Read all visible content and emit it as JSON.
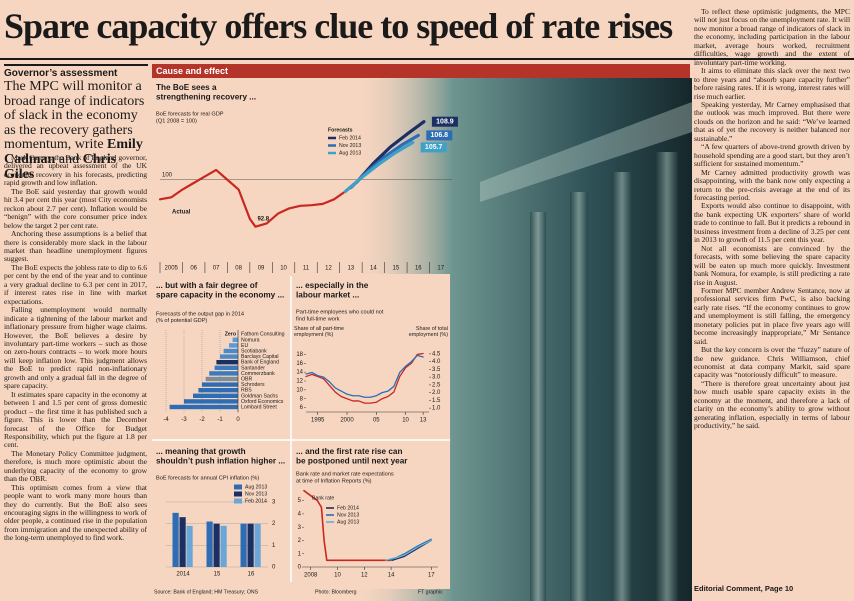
{
  "headline": "Spare capacity offers clue to speed of rate rises",
  "sidebar": {
    "label": "Governor’s assessment",
    "standfirst": [
      "The MPC will monitor a broad range of indicators of slack in the economy as the recovery gathers momentum, write",
      "Emily Cadman",
      "and",
      "Chris Giles"
    ]
  },
  "article": {
    "left": [
      "Mark Carney, the Bank of England governor, delivered an upbeat assessment of the UK economic recovery in his forecasts, predicting rapid growth and low inflation.",
      "The BoE said yesterday that growth would hit 3.4 per cent this year (most City economists reckon about 2.7 per cent). Inflation would be “benign” with the core consumer price index below the target 2 per cent rate.",
      "Anchoring these assumptions is a belief that there is considerably more slack in the labour market than headline unemployment figures suggest.",
      "The BoE expects the jobless rate to dip to 6.6 per cent by the end of the year and to continue a very gradual decline to 6.3 per cent in 2017, if interest rates rise in line with market expectations.",
      "Falling unemployment would normally indicate a tightening of the labour market and inflationary pressure from higher wage claims. However, the BoE believes a desire by involuntary part-time workers – such as those on zero-hours contracts – to work more hours will keep inflation low. This judgment allows the BoE to predict rapid non-inflationary growth and only a gradual fall in the degree of spare capacity.",
      "It estimates spare capacity in the economy at between 1 and 1.5 per cent of gross domestic product – the first time it has published such a figure. This is lower than the December forecast of the Office for Budget Responsibility, which put the figure at 1.8 per cent.",
      "The Monetary Policy Committee judgment, therefore, is much more optimistic about the underlying capacity of the economy to grow than the OBR.",
      "This optimism comes from a view that people want to work many more hours than they do currently. But the BoE also sees encouraging signs in the willingness to work of older people, a continued rise in the population from immigration and the unexpected ability of the long-term unemployed to find work."
    ],
    "right": [
      "To reflect these optimistic judgments, the MPC will not just focus on the unemployment rate. It will now monitor a broad range of indicators of slack in the economy, including participation in the labour market, average hours worked, recruitment difficulties, wage growth and the extent of involuntary part-time working.",
      "It aims to eliminate this slack over the next two to three years and “absorb spare capacity further” before raising rates. If it is wrong, interest rates will rise much earlier.",
      "Speaking yesterday, Mr Carney emphasised that the outlook was much improved. But there were clouds on the horizon and he said: “We’ve learned that as of yet the recovery is neither balanced nor sustainable.”",
      "“A few quarters of above-trend growth driven by household spending are a good start, but they aren’t sufficient for sustained momentum.”",
      "Mr Carney admitted productivity growth was disappointing, with the bank now only expecting a return to the pre-crisis average at the end of its forecasting period.",
      "Exports would also continue to disappoint, with the bank expecting UK exporters’ share of world trade to continue to fall. But it predicts a rebound in business investment from a decline of 3.25 per cent in 2013 to growth of 11.5 per cent this year.",
      "Not all economists are convinced by the forecasts, with some believing the spare capacity will be eaten up much more quickly. Investment bank Nomura, for example, is still predicting a rate rise in August.",
      "Former MPC member Andrew Sentance, now at professional services firm PwC, is also backing early rate rises. “If the economy continues to grow and unemployment is still falling, the emergency monetary policies put in place five years ago will become increasingly inappropriate,” Mr Sentance said.",
      "But the key concern is over the “fuzzy” nature of the new guidance. Chris Williamson, chief economist at data company Markit, said spare capacity was “notoriously difficult” to measure.",
      "“There is therefore great uncertainty about just how much usable spare capacity exists in the economy at the moment, and therefore a lack of clarity on the economy’s ability to grow without generating inflation, especially in terms of labour productivity,” he said."
    ],
    "footer": "Editorial Comment, Page 10"
  },
  "graphic": {
    "title": "Cause and effect",
    "source": "Source: Bank of England; HM Treasury; ONS",
    "photo": "Photo: Bloomberg",
    "credit": "FT graphic"
  },
  "chart_data": [
    {
      "type": "line",
      "title": [
        "The BoE sees a",
        "strengthening recovery ..."
      ],
      "subtitle": [
        "BoE forecasts for real GDP",
        "(Q1 2008 = 100)"
      ],
      "xlim": [
        2005,
        2018
      ],
      "xticks": [
        2005,
        {
          "value": 2006,
          "label": "06"
        },
        {
          "value": 2007,
          "label": "07"
        },
        {
          "value": 2008,
          "label": "08"
        },
        {
          "value": 2009,
          "label": "09"
        },
        {
          "value": 2010,
          "label": "10"
        },
        {
          "value": 2011,
          "label": "11"
        },
        {
          "value": 2012,
          "label": "12"
        },
        {
          "value": 2013,
          "label": "13"
        },
        {
          "value": 2014,
          "label": "14"
        },
        {
          "value": 2015,
          "label": "15"
        },
        {
          "value": 2016,
          "label": "16"
        },
        {
          "value": 2017,
          "label": "17"
        }
      ],
      "ylim": [
        88,
        111
      ],
      "yticks": [
        100
      ],
      "grid": true,
      "legend_title": "Forecasts",
      "series": [
        {
          "name": "Actual",
          "color": "#c8281e",
          "x": [
            2005,
            2005.5,
            2006,
            2006.5,
            2007,
            2007.5,
            2008,
            2008.5,
            2009,
            2009.25,
            2009.75,
            2010.25,
            2010.75,
            2011.25,
            2011.75,
            2012.25,
            2012.75,
            2013.25,
            2013.75
          ],
          "values": [
            97,
            97.3,
            98.5,
            99.5,
            100.5,
            101.5,
            100,
            98.5,
            94,
            92.8,
            93.3,
            94.8,
            95.6,
            96,
            96.1,
            96.3,
            97,
            98.2,
            99.6
          ]
        },
        {
          "name": "Feb 2014",
          "color": "#1c2f63",
          "x": [
            2013.75,
            2014.5,
            2015.25,
            2016,
            2016.75
          ],
          "values": [
            99.6,
            102.5,
            105,
            107,
            108.9
          ]
        },
        {
          "name": "Nov 2013",
          "color": "#2e6db4",
          "x": [
            2013.5,
            2014.25,
            2015,
            2015.75,
            2016.5
          ],
          "values": [
            98.8,
            101.3,
            103.5,
            105.3,
            106.8
          ]
        },
        {
          "name": "Aug 2013",
          "color": "#3fa0c8",
          "x": [
            2013.25,
            2014,
            2014.75,
            2015.5,
            2016.25
          ],
          "values": [
            98.2,
            100.4,
            102.4,
            104.2,
            105.7
          ]
        }
      ]
    },
    {
      "type": "hbar",
      "title": [
        "... but with a fair degree of",
        "spare capacity in the economy ..."
      ],
      "subtitle": [
        "Forecasts of the output gap in 2014",
        "(% of potential GDP)"
      ],
      "categories": [
        "Fathom Consulting",
        "Nomura",
        "EU",
        "Scotiabank",
        "Barclays Capital",
        "Bank of England",
        "Santander",
        "Commerzbank",
        "OBR",
        "Schroders",
        "RBS",
        "Goldman Sachs",
        "Oxford Economics",
        "Lombard Street"
      ],
      "values": [
        0,
        -0.3,
        -0.5,
        -0.8,
        -1.0,
        -1.2,
        -1.3,
        -1.6,
        -1.8,
        -2.0,
        -2.2,
        -2.5,
        -3.0,
        -3.8
      ],
      "value_labels": [
        "Zero",
        null,
        null,
        null,
        null,
        null,
        null,
        null,
        null,
        null,
        null,
        null,
        null,
        null
      ],
      "colors": [
        "#5a9bd5",
        "#5a9bd5",
        "#5a9bd5",
        "#4a8bc8",
        "#4a8bc8",
        "#1c2f63",
        "#3a7bbd",
        "#3a7bbd",
        "#7f8c99",
        "#2e6db4",
        "#2e6db4",
        "#2e6db4",
        "#2e6db4",
        "#2e6db4"
      ],
      "xlim": [
        -4.5,
        0.5
      ],
      "xticks": [
        -4,
        -3,
        -2,
        -1,
        0
      ],
      "grid": true
    },
    {
      "type": "line",
      "title": [
        "... especially in the",
        "labour market ..."
      ],
      "subtitle": [
        "Part-time employees who could not",
        "find full-time work"
      ],
      "xlim": [
        1993,
        2014
      ],
      "xticks": [
        1995,
        2000,
        {
          "value": 2005,
          "label": "05"
        },
        {
          "value": 2010,
          "label": "10"
        },
        {
          "value": 2013,
          "label": "13"
        }
      ],
      "ylim": [
        5,
        19
      ],
      "yticks": [
        6,
        8,
        10,
        12,
        14,
        16,
        18
      ],
      "y2lim": [
        0.75,
        4.75
      ],
      "y2ticks": [
        {
          "value": 1,
          "label": "1.0"
        },
        1.5,
        {
          "value": 2,
          "label": "2.0"
        },
        2.5,
        {
          "value": 3,
          "label": "3.0"
        },
        3.5,
        {
          "value": 4,
          "label": "4.0"
        },
        4.5
      ],
      "grid": false,
      "series": [
        {
          "name": "Share of all part-time employment (%)",
          "color": "#c8281e",
          "x": [
            1993,
            1994,
            1995,
            1996,
            1997,
            1998,
            1999,
            2000,
            2001,
            2002,
            2003,
            2004,
            2005,
            2006,
            2007,
            2008,
            2009,
            2010,
            2011,
            2012,
            2013
          ],
          "values": [
            13,
            13.5,
            13,
            12.5,
            11,
            9.5,
            8.5,
            8,
            7.5,
            7.5,
            7,
            7,
            7.2,
            8,
            8.5,
            9.5,
            13,
            15,
            16,
            18,
            18.2
          ]
        },
        {
          "name": "Share of total employment (%)",
          "color": "#2e6db4",
          "axis": "y2",
          "x": [
            1993,
            1994,
            1995,
            1996,
            1997,
            1998,
            1999,
            2000,
            2001,
            2002,
            2003,
            2004,
            2005,
            2006,
            2007,
            2008,
            2009,
            2010,
            2011,
            2012,
            2013
          ],
          "values": [
            3.2,
            3.3,
            3.1,
            3.0,
            2.7,
            2.3,
            2.1,
            1.9,
            1.8,
            1.8,
            1.7,
            1.7,
            1.8,
            2.0,
            2.1,
            2.4,
            3.3,
            3.7,
            4.0,
            4.4,
            4.3
          ]
        }
      ]
    },
    {
      "type": "groupbar",
      "title": [
        "... meaning that growth",
        "shouldn’t push inflation higher ..."
      ],
      "subtitle": "BoE forecasts for annual CPI inflation (%)",
      "categories": [
        "2014",
        "15",
        "16"
      ],
      "ylim": [
        0,
        3
      ],
      "yticks": [
        0,
        1,
        2,
        3
      ],
      "grid": true,
      "series": [
        {
          "name": "Aug 2013",
          "color": "#2e6db4",
          "values": [
            2.5,
            2.1,
            2.0
          ]
        },
        {
          "name": "Nov 2013",
          "color": "#1c2f63",
          "values": [
            2.3,
            2.0,
            2.0
          ]
        },
        {
          "name": "Feb 2014",
          "color": "#6aa6d8",
          "values": [
            1.9,
            1.9,
            2.0
          ]
        }
      ]
    },
    {
      "type": "line",
      "title": [
        "... and the first rate rise can",
        "be postponed until next year"
      ],
      "subtitle": [
        "Bank rate and market rate expectations",
        "at time of Inflation Reports (%)"
      ],
      "xlim": [
        2007.5,
        2017.5
      ],
      "xticks": [
        2008,
        {
          "value": 2010,
          "label": "10"
        },
        {
          "value": 2012,
          "label": "12"
        },
        {
          "value": 2014,
          "label": "14"
        },
        {
          "value": 2017,
          "label": "17"
        }
      ],
      "ylim": [
        0,
        5.5
      ],
      "yticks": [
        0,
        1,
        2,
        3,
        4,
        5
      ],
      "grid": false,
      "series": [
        {
          "name": "Bank rate",
          "color": "#c8281e",
          "x": [
            2007.5,
            2008.5,
            2008.8,
            2009.0,
            2009.2,
            2014
          ],
          "values": [
            5.75,
            5,
            4.5,
            2,
            0.5,
            0.5
          ]
        },
        {
          "name": "Feb 2014",
          "color": "#1c2f63",
          "x": [
            2014.1,
            2015,
            2016,
            2017
          ],
          "values": [
            0.5,
            0.8,
            1.4,
            2.0
          ]
        },
        {
          "name": "Nov 2013",
          "color": "#2e6db4",
          "x": [
            2013.9,
            2015,
            2016,
            2017
          ],
          "values": [
            0.5,
            1.0,
            1.6,
            2.1
          ]
        },
        {
          "name": "Aug 2013",
          "color": "#5fb0d6",
          "x": [
            2013.6,
            2015,
            2016,
            2017
          ],
          "values": [
            0.5,
            0.9,
            1.5,
            2.0
          ]
        }
      ]
    }
  ]
}
